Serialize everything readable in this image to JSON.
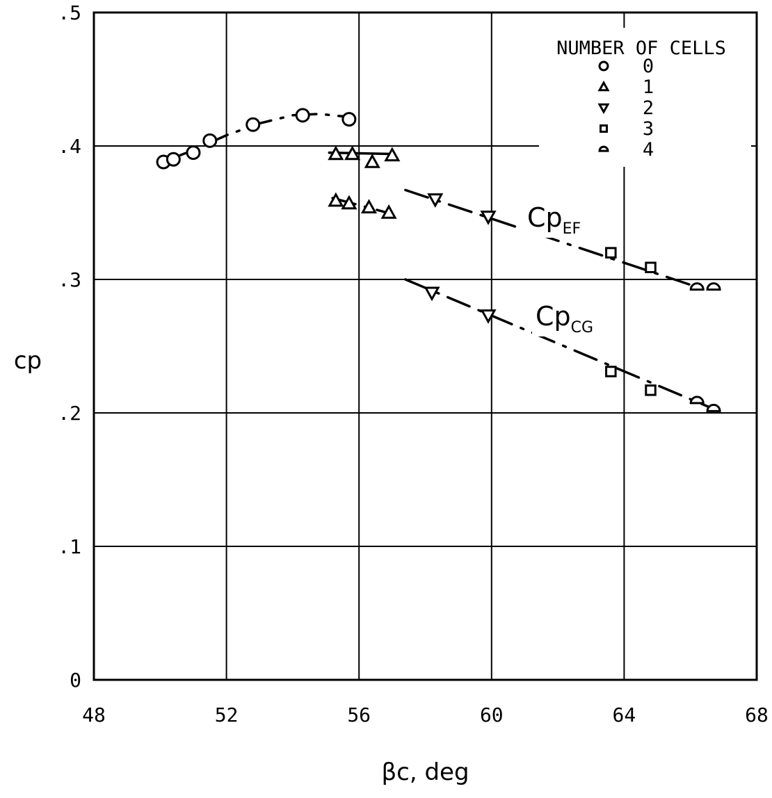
{
  "chart_data": {
    "type": "scatter",
    "xlabel": "βc, deg",
    "ylabel": "cp",
    "xlim": [
      48,
      68
    ],
    "ylim": [
      0,
      0.5
    ],
    "xticks": [
      "48",
      "52",
      "56",
      "60",
      "64",
      "68"
    ],
    "yticks": [
      "0",
      ".1",
      ".2",
      ".3",
      ".4",
      ".5"
    ],
    "grid": true,
    "legend": {
      "title": "NUMBER OF CELLS",
      "placement": "top-right",
      "entries": [
        {
          "marker": "circle",
          "label": "0"
        },
        {
          "marker": "triangle-up",
          "label": "1"
        },
        {
          "marker": "triangle-down",
          "label": "2"
        },
        {
          "marker": "square",
          "label": "3"
        },
        {
          "marker": "half-circle",
          "label": "4"
        }
      ]
    },
    "curve_labels": [
      {
        "name": "Cp",
        "subscript": "EF"
      },
      {
        "name": "Cp",
        "subscript": "CG"
      }
    ],
    "series": [
      {
        "marker": "circle",
        "curve": 0,
        "points": [
          [
            50.1,
            0.388
          ],
          [
            50.4,
            0.39
          ],
          [
            51.0,
            0.395
          ],
          [
            51.5,
            0.404
          ],
          [
            52.8,
            0.416
          ],
          [
            54.3,
            0.423
          ],
          [
            55.7,
            0.42
          ]
        ]
      },
      {
        "marker": "triangle-up",
        "curve": 0,
        "points": [
          [
            55.3,
            0.394
          ],
          [
            55.8,
            0.394
          ],
          [
            56.4,
            0.388
          ],
          [
            57.0,
            0.393
          ]
        ]
      },
      {
        "marker": "triangle-up",
        "curve": 1,
        "points": [
          [
            55.3,
            0.359
          ],
          [
            55.7,
            0.357
          ],
          [
            56.3,
            0.354
          ],
          [
            56.9,
            0.35
          ]
        ]
      },
      {
        "marker": "triangle-down",
        "curve": 0,
        "points": [
          [
            58.3,
            0.36
          ],
          [
            59.9,
            0.347
          ]
        ]
      },
      {
        "marker": "triangle-down",
        "curve": 1,
        "points": [
          [
            58.2,
            0.29
          ],
          [
            59.9,
            0.273
          ]
        ]
      },
      {
        "marker": "square",
        "curve": 0,
        "points": [
          [
            63.6,
            0.32
          ],
          [
            64.8,
            0.309
          ]
        ]
      },
      {
        "marker": "square",
        "curve": 1,
        "points": [
          [
            63.6,
            0.231
          ],
          [
            64.8,
            0.217
          ]
        ]
      },
      {
        "marker": "half-circle",
        "curve": 0,
        "points": [
          [
            66.2,
            0.294
          ],
          [
            66.7,
            0.294
          ]
        ]
      },
      {
        "marker": "half-circle",
        "curve": 1,
        "points": [
          [
            66.2,
            0.209
          ],
          [
            66.7,
            0.203
          ]
        ]
      }
    ],
    "fair_curves": [
      {
        "name": "zero-cells",
        "dashed": true,
        "points": [
          [
            50.1,
            0.388
          ],
          [
            51.0,
            0.397
          ],
          [
            52.0,
            0.408
          ],
          [
            53.0,
            0.417
          ],
          [
            54.0,
            0.423
          ],
          [
            54.8,
            0.424
          ],
          [
            55.6,
            0.422
          ]
        ]
      },
      {
        "name": "one-cell-upper",
        "dashed": false,
        "points": [
          [
            55.1,
            0.395
          ],
          [
            57.0,
            0.394
          ]
        ]
      },
      {
        "name": "ef-line",
        "dashed": true,
        "points": [
          [
            55.2,
            0.361
          ],
          [
            57.0,
            0.349
          ]
        ]
      },
      {
        "name": "ef-line",
        "dashed": true,
        "points": [
          [
            57.4,
            0.367
          ],
          [
            66.0,
            0.296
          ]
        ]
      },
      {
        "name": "cg-line",
        "dashed": true,
        "points": [
          [
            57.4,
            0.3
          ],
          [
            66.6,
            0.204
          ]
        ]
      }
    ]
  }
}
